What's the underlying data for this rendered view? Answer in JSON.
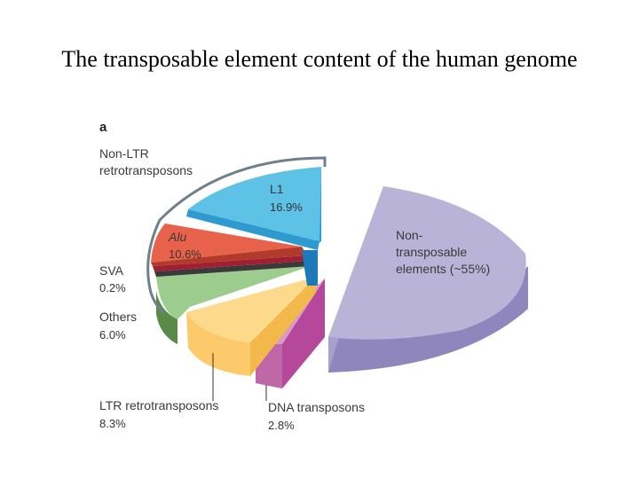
{
  "title": "The transposable element content of the human genome",
  "chart_data": {
    "type": "pie",
    "panel_label": "a",
    "group_label_lines": [
      "Non-LTR",
      "retrotransposons"
    ],
    "slices": [
      {
        "key": "l1",
        "name": "L1",
        "value_text": "16.9%",
        "value": 16.9,
        "color": "#5ec1e6",
        "side_color": "#2e9ad0"
      },
      {
        "key": "alu",
        "name": "Alu",
        "value_text": "10.6%",
        "value": 10.6,
        "color": "#e8614a",
        "side_color": "#b13a2a"
      },
      {
        "key": "sva",
        "name": "SVA",
        "value_text": "0.2%",
        "value": 0.2,
        "color": "#a01f32",
        "side_color": "#6b1020"
      },
      {
        "key": "others",
        "name": "Others",
        "value_text": "6.0%",
        "value": 6.0,
        "color": "#9ccc8e",
        "side_color": "#5a8a48"
      },
      {
        "key": "ltr",
        "name": "LTR retrotransposons",
        "value_text": "8.3%",
        "value": 8.3,
        "color": "#fdd98b",
        "side_color": "#f6c25a"
      },
      {
        "key": "dna",
        "name": "DNA transposons",
        "value_text": "2.8%",
        "value": 2.8,
        "color": "#d89ac6",
        "side_color": "#b5489a"
      },
      {
        "key": "non",
        "name_lines": [
          "Non-",
          "transposable",
          "elements (~55%)"
        ],
        "value": 55,
        "color": "#b9b3d8",
        "side_color": "#8e86bd"
      }
    ]
  }
}
